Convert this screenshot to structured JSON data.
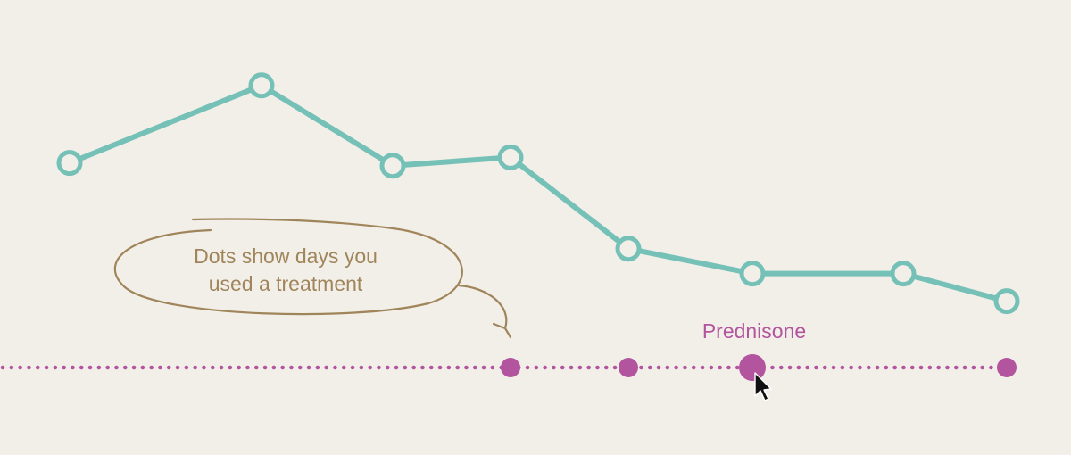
{
  "chart_data": {
    "type": "line",
    "x": [
      1,
      2,
      3,
      4,
      5,
      6,
      7,
      8
    ],
    "series": [
      {
        "values": [
          5.4,
          8.2,
          5.3,
          5.6,
          2.3,
          1.4,
          1.4,
          0.4
        ]
      }
    ],
    "ylim": [
      0,
      10
    ],
    "grid": false,
    "treatment": {
      "name": "Prednisone",
      "days_used": [
        4,
        5,
        6,
        8
      ],
      "highlighted_day": 6
    },
    "annotation": {
      "text_line1": "Dots show days you",
      "text_line2": "used a treatment"
    },
    "colors": {
      "line": "#76c1b7",
      "treatment": "#b2549e",
      "annotation": "#a0855a",
      "background": "#f2efe9"
    }
  },
  "ui": {
    "cursor_icon": "arrow-pointer-icon"
  }
}
